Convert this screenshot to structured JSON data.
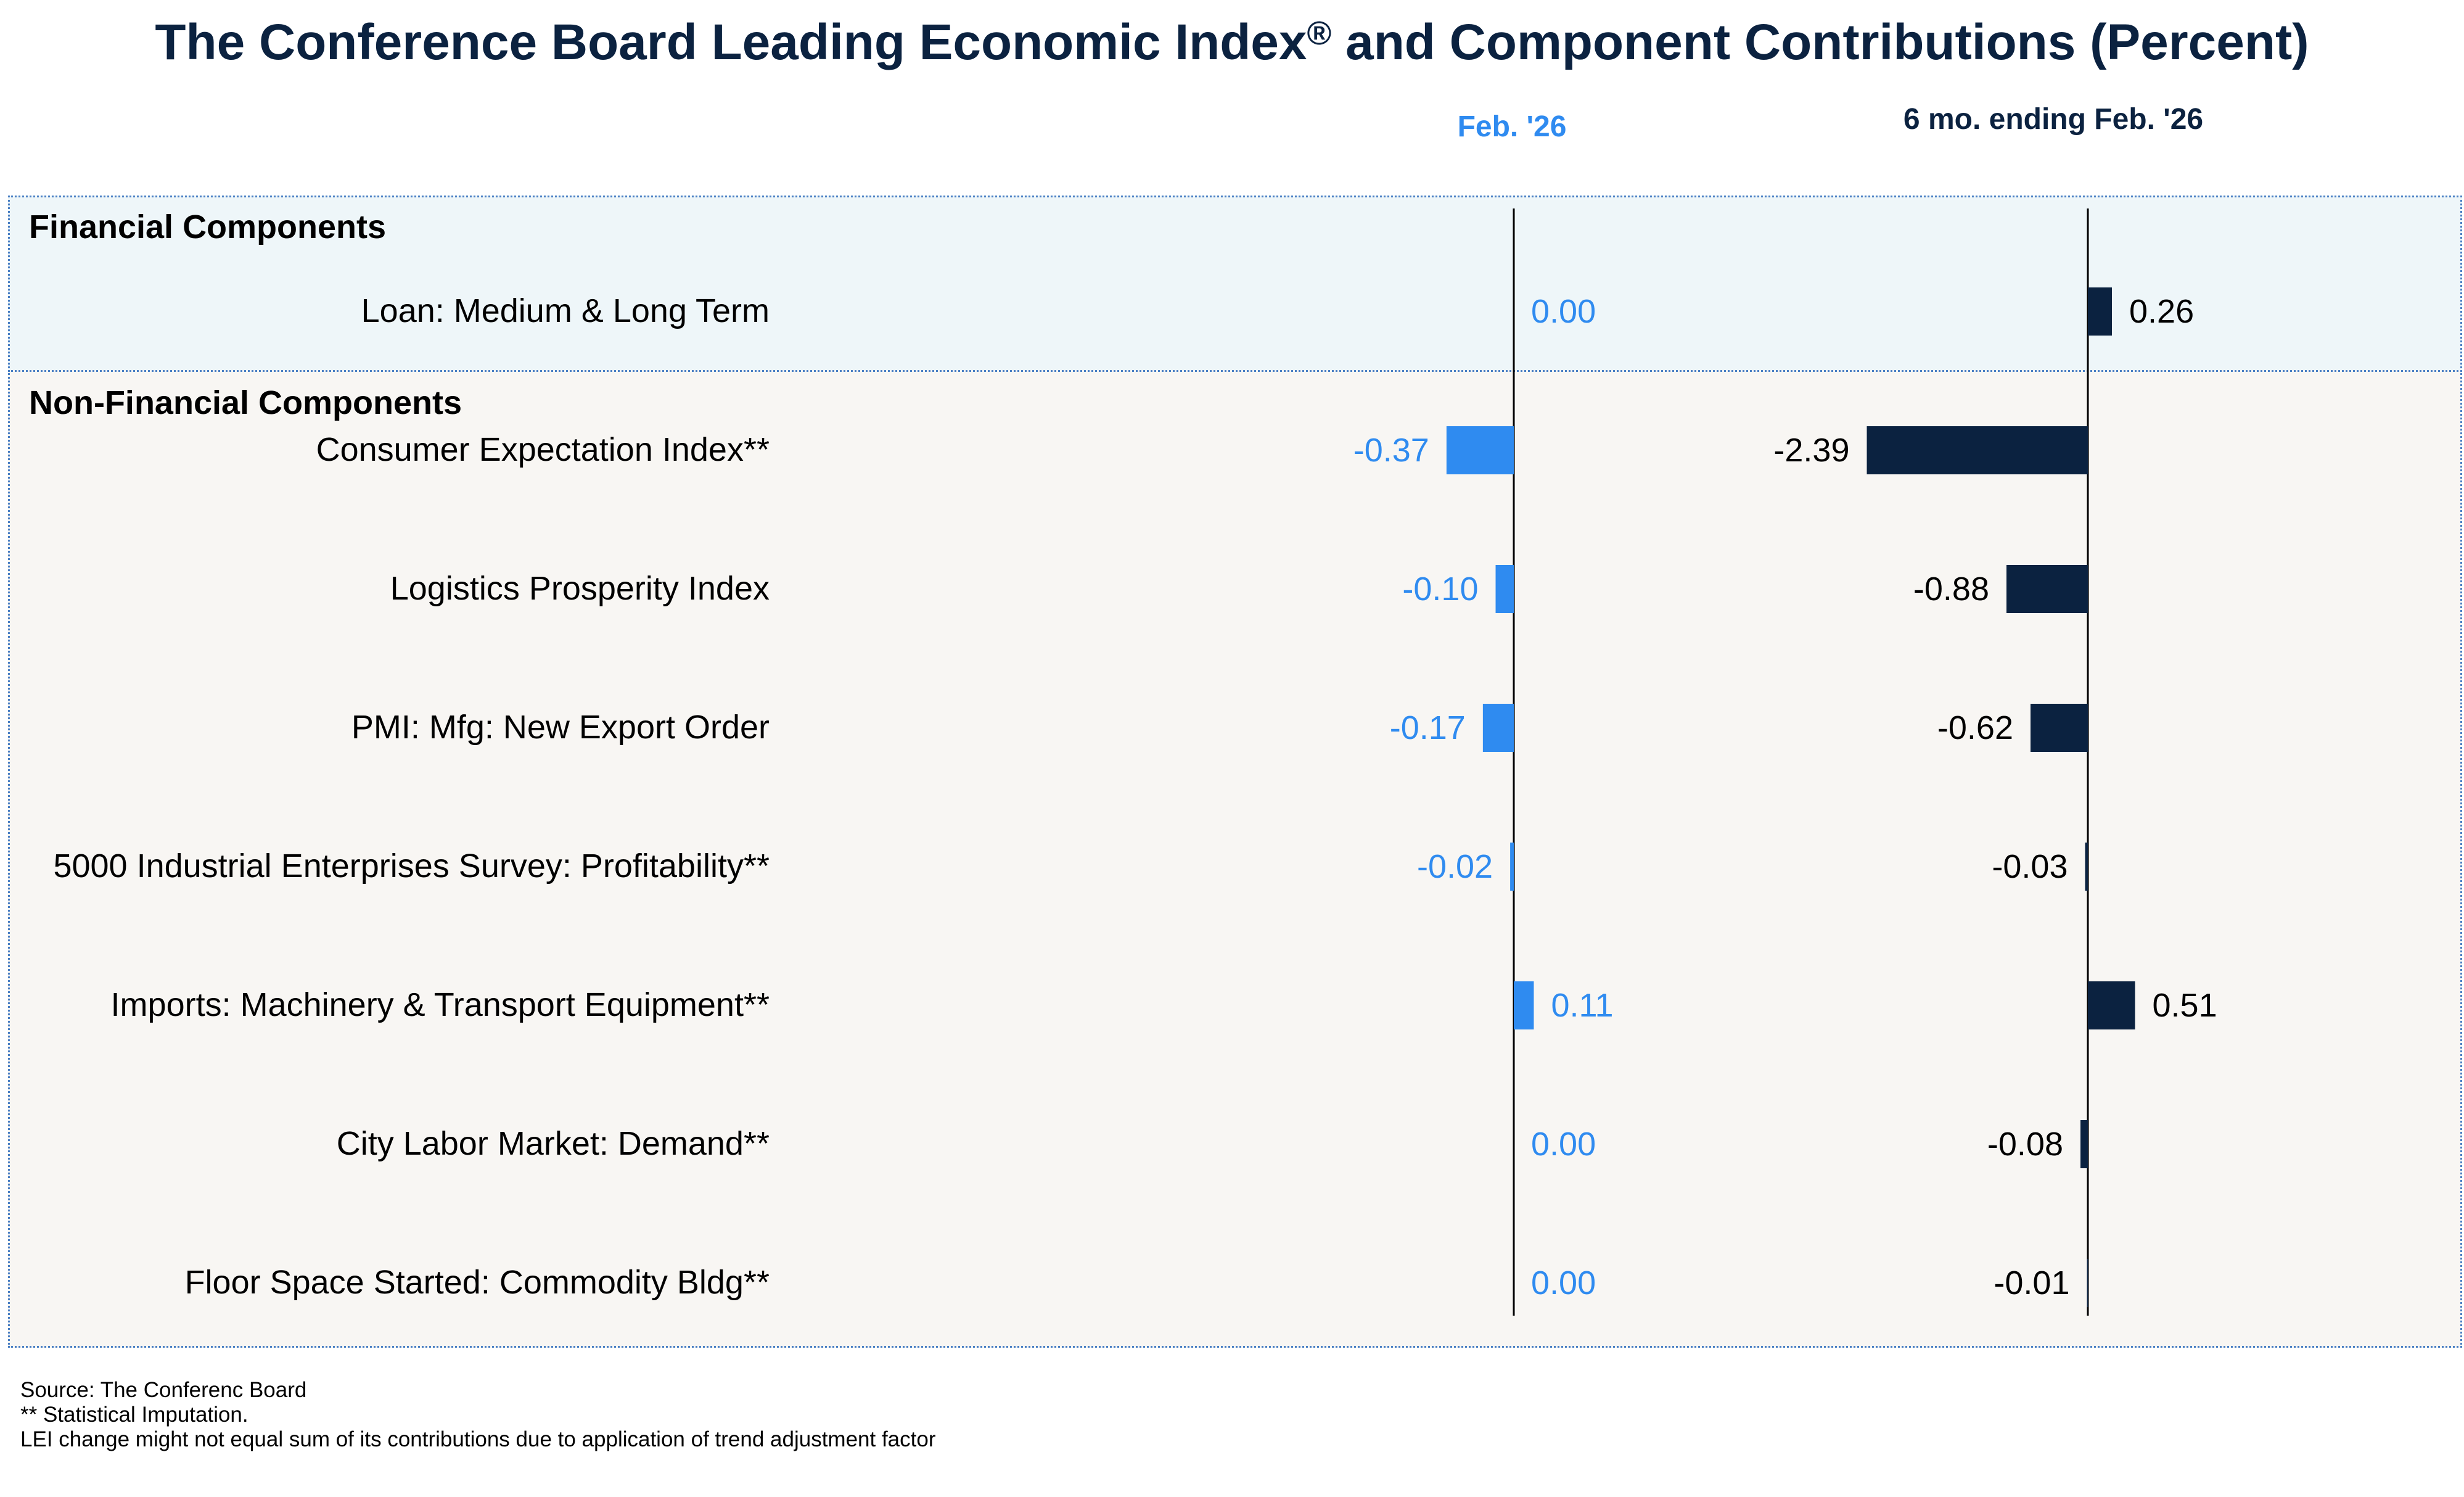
{
  "title": "The Conference Board Leading Economic Index",
  "title_mark": "®",
  "title_suffix": " and Component Contributions (Percent)",
  "chart_data": {
    "type": "bar",
    "orientation": "horizontal",
    "columns": [
      {
        "name": "Feb. '26",
        "color": "#2f8bf0"
      },
      {
        "name": "6 mo. ending Feb. '26",
        "color": "#0b2240"
      }
    ],
    "groups": [
      {
        "name": "Financial Components",
        "rows": [
          {
            "label": "Loan: Medium & Long Term",
            "values": [
              0.0,
              0.26
            ],
            "labels": [
              "0.00",
              "0.26"
            ]
          }
        ]
      },
      {
        "name": "Non-Financial Components",
        "rows": [
          {
            "label": "Consumer Expectation Index**",
            "values": [
              -0.37,
              -2.39
            ],
            "labels": [
              "-0.37",
              "-2.39"
            ]
          },
          {
            "label": "Logistics Prosperity Index",
            "values": [
              -0.1,
              -0.88
            ],
            "labels": [
              "-0.10",
              "-0.88"
            ]
          },
          {
            "label": "PMI: Mfg: New Export Order",
            "values": [
              -0.17,
              -0.62
            ],
            "labels": [
              "-0.17",
              "-0.62"
            ]
          },
          {
            "label": "5000 Industrial Enterprises Survey: Profitability**",
            "values": [
              -0.02,
              -0.03
            ],
            "labels": [
              "-0.02",
              "-0.03"
            ]
          },
          {
            "label": "Imports: Machinery & Transport Equipment**",
            "values": [
              0.11,
              0.51
            ],
            "labels": [
              "0.11",
              "0.51"
            ]
          },
          {
            "label": "City Labor Market: Demand**",
            "values": [
              0.0,
              -0.08
            ],
            "labels": [
              "0.00",
              "-0.08"
            ]
          },
          {
            "label": "Floor Space Started: Commodity Bldg**",
            "values": [
              0.0,
              -0.01
            ],
            "labels": [
              "0.00",
              "-0.01"
            ]
          }
        ]
      }
    ]
  },
  "footer": {
    "source": "Source: The Conferenc Board",
    "note1": "**  Statistical Imputation.",
    "note2": "LEI change might not equal sum of its contributions due to application of trend adjustment factor"
  }
}
